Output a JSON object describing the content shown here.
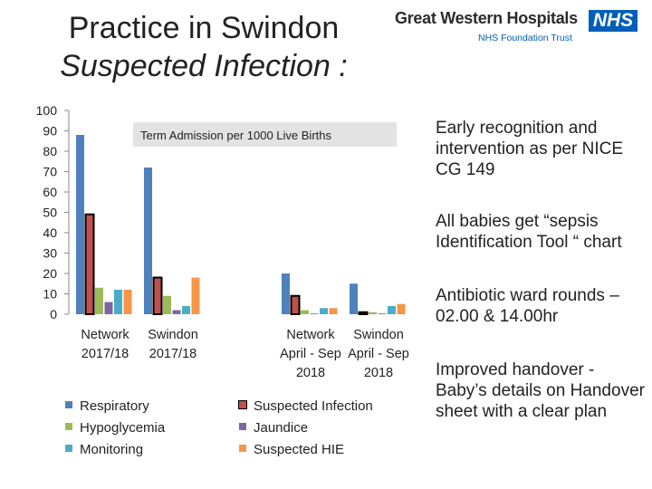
{
  "title": {
    "line1": "Practice in Swindon",
    "line2": "Suspected Infection :"
  },
  "logo": {
    "brand": "Great Western Hospitals",
    "nhs": "NHS",
    "trust": "NHS Foundation Trust"
  },
  "bullets": [
    "Early recognition and intervention as per NICE CG 149",
    "All babies get “sepsis Identification Tool “ chart",
    "Antibiotic ward rounds – 02.00 & 14.00hr",
    "Improved handover - Baby’s details on Handover sheet with a clear plan"
  ],
  "chart_data": {
    "type": "bar",
    "title": "Term Admission per 1000 Live Births",
    "categories": [
      [
        "Network",
        "2017/18"
      ],
      [
        "Swindon",
        "2017/18"
      ],
      [
        "Network",
        "April - Sep",
        "2018"
      ],
      [
        "Swindon",
        "April - Sep",
        "2018"
      ]
    ],
    "ylim": [
      0,
      100
    ],
    "yticks": [
      0,
      10,
      20,
      30,
      40,
      50,
      60,
      70,
      80,
      90,
      100
    ],
    "grid": false,
    "legend_position": "bottom",
    "highlight_series": "Suspected Infection",
    "series": [
      {
        "name": "Respiratory",
        "color": "#4f81bd",
        "values": [
          88,
          72,
          20,
          15
        ]
      },
      {
        "name": "Suspected Infection",
        "color": "#c0504d",
        "values": [
          49,
          18,
          9,
          1
        ]
      },
      {
        "name": "Hypoglycemia",
        "color": "#9bbb59",
        "values": [
          13,
          9,
          2,
          1
        ]
      },
      {
        "name": "Jaundice",
        "color": "#8064a2",
        "values": [
          6,
          2,
          0,
          0
        ]
      },
      {
        "name": "Monitoring",
        "color": "#4bacc6",
        "values": [
          12,
          4,
          3,
          4
        ]
      },
      {
        "name": "Suspected HIE",
        "color": "#f79646",
        "values": [
          12,
          18,
          3,
          5
        ]
      }
    ]
  }
}
